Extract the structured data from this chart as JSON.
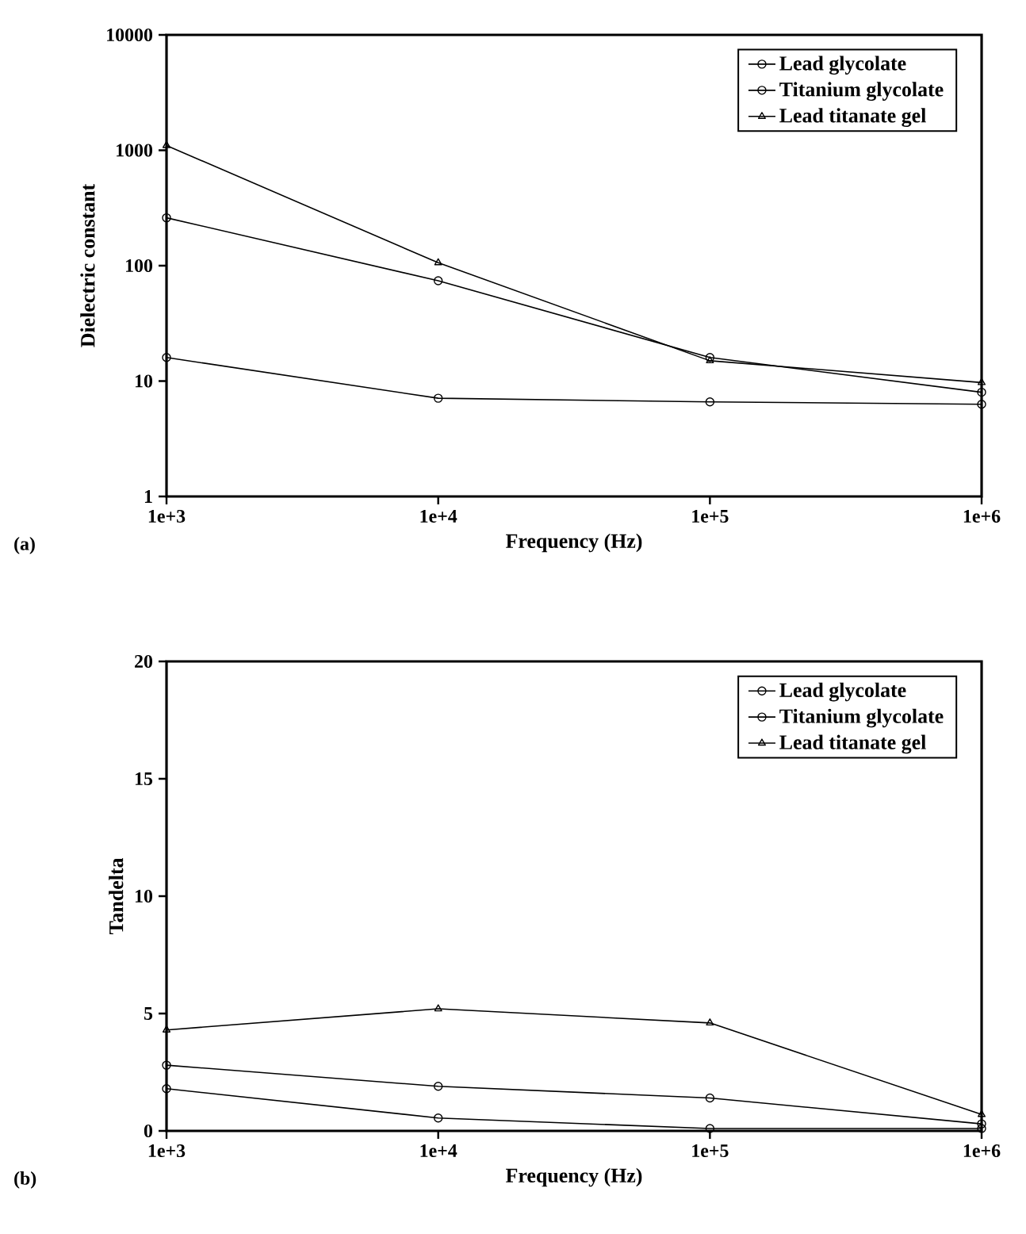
{
  "chart_data": [
    {
      "type": "line",
      "xlabel": "Frequency (Hz)",
      "ylabel": "Dielectric constant",
      "log": "xy",
      "legend": "top right",
      "line_style": "solid",
      "x": [
        1000,
        10000,
        100000,
        1000000
      ],
      "xlim": [
        1000,
        1000000
      ],
      "xticks": [
        {
          "value": 1000,
          "label": "1e+3"
        },
        {
          "value": 10000,
          "label": "1e+4"
        },
        {
          "value": 100000,
          "label": "1e+5"
        },
        {
          "value": 1000000,
          "label": "1e+6"
        }
      ],
      "ylim": [
        1,
        10000
      ],
      "yticks": [
        1,
        10,
        100,
        1000,
        10000
      ],
      "annotations": [
        "(a)"
      ],
      "series": [
        {
          "name": "Lead glycolate",
          "color": "#000000",
          "marker": "circle",
          "values": [
            260,
            74,
            16,
            8
          ]
        },
        {
          "name": "Titanium glycolate",
          "color": "#000000",
          "marker": "circle",
          "values": [
            16,
            7.1,
            6.6,
            6.3
          ]
        },
        {
          "name": "Lead titanate gel",
          "color": "#000000",
          "marker": "triangle",
          "values": [
            1100,
            106,
            15,
            9.7
          ]
        }
      ]
    },
    {
      "type": "line",
      "xlabel": "Frequency (Hz)",
      "ylabel": "Tandelta",
      "log": "x",
      "legend": "top right",
      "line_style": "solid",
      "x": [
        1000,
        10000,
        100000,
        1000000
      ],
      "xlim": [
        1000,
        1000000
      ],
      "xticks": [
        {
          "value": 1000,
          "label": "1e+3"
        },
        {
          "value": 10000,
          "label": "1e+4"
        },
        {
          "value": 100000,
          "label": "1e+5"
        },
        {
          "value": 1000000,
          "label": "1e+6"
        }
      ],
      "ylim": [
        0,
        20
      ],
      "yticks": [
        0,
        5,
        10,
        15,
        20
      ],
      "annotations": [
        "(b)"
      ],
      "series": [
        {
          "name": "Lead glycolate",
          "color": "#000000",
          "marker": "circle",
          "values": [
            2.8,
            1.9,
            1.4,
            0.3
          ]
        },
        {
          "name": "Titanium glycolate",
          "color": "#000000",
          "marker": "circle",
          "values": [
            1.8,
            0.55,
            0.1,
            0.1
          ]
        },
        {
          "name": "Lead titanate gel",
          "color": "#000000",
          "marker": "triangle",
          "values": [
            4.3,
            5.2,
            4.6,
            0.7
          ]
        }
      ]
    }
  ]
}
